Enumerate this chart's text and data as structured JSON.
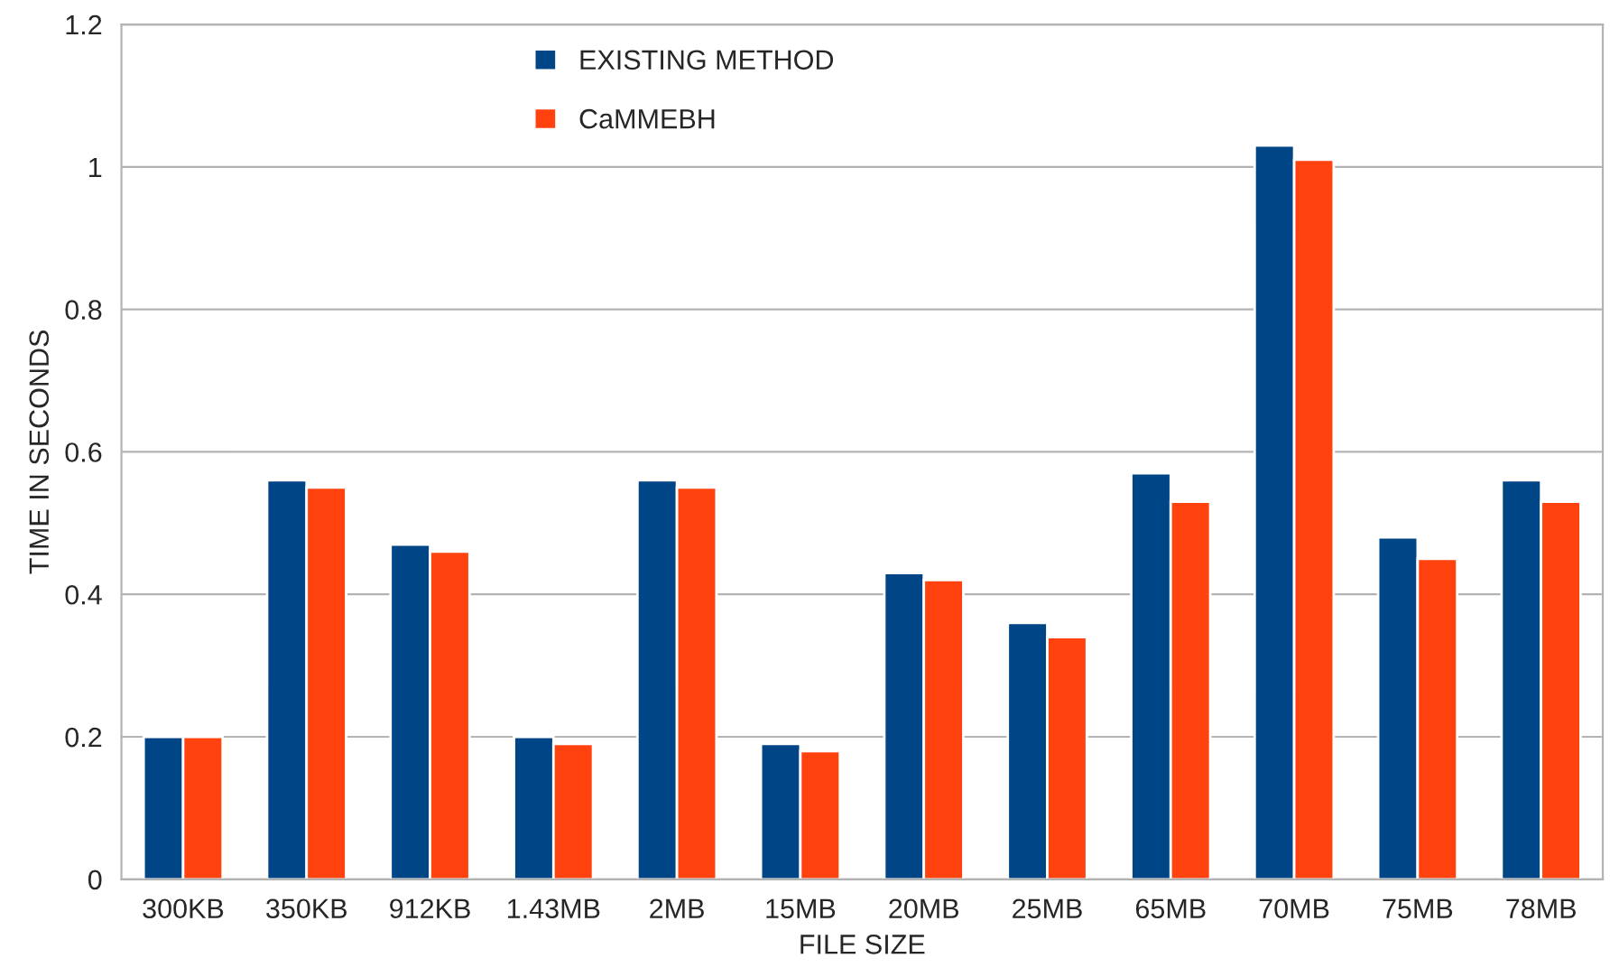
{
  "chart_data": {
    "type": "bar",
    "xlabel": "FILE SIZE",
    "ylabel": "TIME IN SECONDS",
    "categories": [
      "300KB",
      "350KB",
      "912KB",
      "1.43MB",
      "2MB",
      "15MB",
      "20MB",
      "25MB",
      "65MB",
      "70MB",
      "75MB",
      "78MB"
    ],
    "series": [
      {
        "name": "EXISTING METHOD",
        "color": "#004586",
        "values": [
          0.2,
          0.56,
          0.47,
          0.2,
          0.56,
          0.19,
          0.43,
          0.36,
          0.57,
          1.03,
          0.48,
          0.56
        ]
      },
      {
        "name": "CaMMEBH",
        "color": "#ff420e",
        "values": [
          0.2,
          0.55,
          0.46,
          0.19,
          0.55,
          0.18,
          0.42,
          0.34,
          0.53,
          1.01,
          0.45,
          0.53
        ]
      }
    ],
    "ylim": [
      0,
      1.2
    ],
    "yticks": [
      0,
      0.2,
      0.4,
      0.6,
      0.8,
      1,
      1.2
    ],
    "grid": "y",
    "legend": "top"
  }
}
